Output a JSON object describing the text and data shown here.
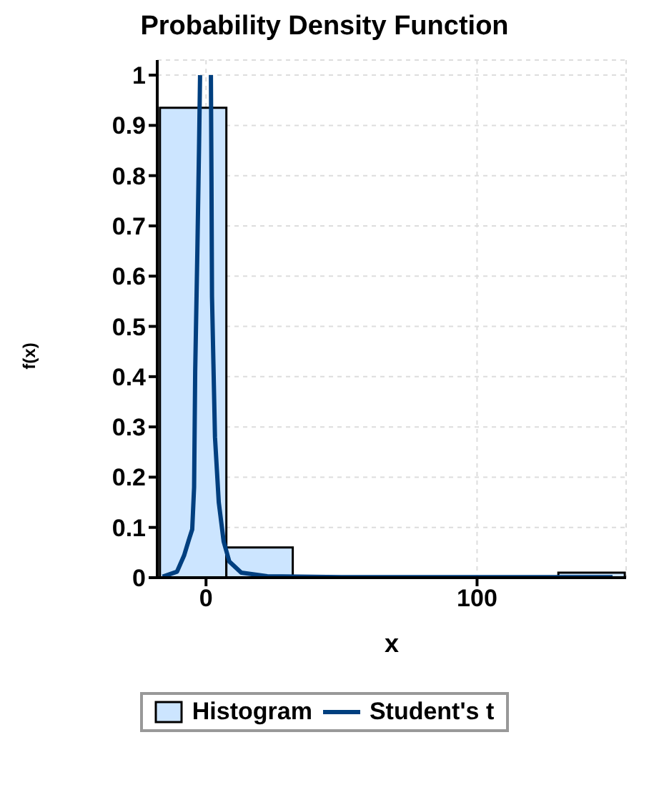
{
  "chart_data": {
    "type": "histogram",
    "title": "Probability Density Function",
    "xlabel": "x",
    "ylabel": "f(x)",
    "bins": [
      -17,
      7.5,
      32,
      56.5,
      81,
      105.5,
      130,
      154.5
    ],
    "series": [
      {
        "name": "Histogram",
        "color": "#cce5ff",
        "values": [
          0.935,
          0.06,
          0,
          0,
          0,
          0,
          0.01
        ]
      },
      {
        "name": "Student's t",
        "type": "line",
        "color": "#003f7f",
        "x": [
          -16,
          -10.7,
          -8.1,
          -6.3,
          -5.1,
          -4.4,
          -4.0,
          -3.2,
          -2.6,
          -2.2,
          -0.2,
          1.8,
          2.0,
          2.2,
          3.3,
          4.7,
          6.5,
          8.6,
          13,
          22.6,
          50,
          100,
          150
        ],
        "values": [
          0.002,
          0.012,
          0.044,
          0.076,
          0.096,
          0.18,
          0.41,
          0.65,
          0.85,
          1.0,
          null,
          1.0,
          0.8,
          0.56,
          0.28,
          0.15,
          0.072,
          0.032,
          0.01,
          0.003,
          0.001,
          0.001,
          0.001
        ]
      }
    ],
    "xlim": [
      -18,
      155
    ],
    "xticks": [
      0,
      100
    ],
    "ylim": [
      0,
      1.03
    ],
    "yticks": [
      0,
      0.1,
      0.2,
      0.3,
      0.4,
      0.5,
      0.6,
      0.7,
      0.8,
      0.9,
      1
    ],
    "grid": true,
    "legend": "bottom",
    "marker": "none",
    "line_style": "solid"
  }
}
